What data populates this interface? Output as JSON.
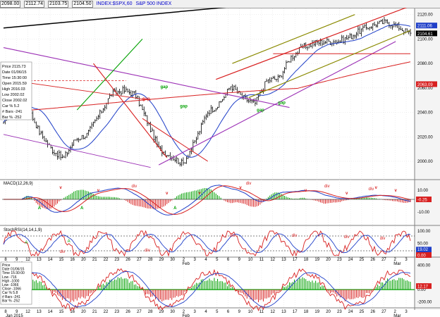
{
  "header": {
    "open": "2098.00",
    "high": "2112.74",
    "low": "2103.75",
    "close": "2104.50",
    "symbol": "INDEX:$SPX,60",
    "title": "S&P 500 INDEX"
  },
  "panels": {
    "price": {
      "y_ticks": [
        "2120.00",
        "2100.00",
        "2080.00",
        "2060.00",
        "2040.00",
        "2020.00",
        "2000.00"
      ],
      "price_tags": [
        {
          "text": "2111.06",
          "color": "#1f3fc8"
        },
        {
          "text": "2104.61",
          "color": "#000000"
        },
        {
          "text": "2063.09",
          "color": "#d82020"
        }
      ],
      "info_box": [
        "Price  2115.73",
        "Date  01/06/15",
        "Time  15:30:00",
        "Open  2015.59",
        "High  2016.03",
        "Low   2002.02",
        "Close 2002.02",
        "Car % 5.2",
        "# Bars -241",
        "Bar %  -252"
      ],
      "annotations": [
        "gap",
        "gap",
        "gap",
        "gap",
        "gap"
      ]
    },
    "macd": {
      "label": "MACD(12,26,9)",
      "y_ticks": [
        "10.00",
        "0.00",
        "-10.00"
      ],
      "value_tag": "-0.25",
      "annotations": {
        "v": [
          "v",
          "v",
          "v",
          "v",
          "v",
          "v",
          "v",
          "v",
          "v"
        ],
        "div": [
          "div",
          "div",
          "div",
          "div"
        ],
        "a": [
          "A",
          "A",
          "A"
        ]
      }
    },
    "stoch": {
      "label": "StochRSI(14,14,1,9)",
      "y_ticks": [
        "100.00",
        "50.00",
        "0.00"
      ],
      "value_tags": [
        "19.02",
        "0.00"
      ],
      "annotations": [
        "A",
        "A",
        "div",
        "div",
        "div",
        "div",
        "div",
        "div"
      ]
    },
    "bottom": {
      "y_ticks": [
        "400.00",
        "0.00",
        "-200.00"
      ],
      "value_tag": "12.17",
      "info_box": [
        "Price",
        "Date  01/06/15",
        "Time  15:30:00",
        "Low   -716",
        "High  -1000",
        "Low   -1066",
        "Close -1066",
        "Car % 5.8",
        "# Bars -241",
        "Bar %  -252"
      ]
    }
  },
  "x_axis": {
    "ticks": [
      "8",
      "9",
      "12",
      "13",
      "14",
      "15",
      "16",
      "20",
      "21",
      "22",
      "23",
      "26",
      "27",
      "28",
      "29",
      "30",
      "2",
      "3",
      "4",
      "5",
      "6",
      "9",
      "10",
      "11",
      "12",
      "13",
      "17",
      "18",
      "19",
      "20",
      "23",
      "24",
      "25",
      "26",
      "27",
      "2",
      "3"
    ],
    "month_labels": [
      "Jan 2015",
      "Feb",
      "Mar"
    ]
  },
  "chart_data": {
    "type": "line",
    "title": "S&P 500 INDEX",
    "symbol": "INDEX:$SPX,60",
    "xlabel": "",
    "ylabel": "",
    "ylim": [
      1985,
      2125
    ],
    "x": [
      "Jan 8",
      "Jan 9",
      "Jan 12",
      "Jan 13",
      "Jan 14",
      "Jan 15",
      "Jan 16",
      "Jan 20",
      "Jan 21",
      "Jan 22",
      "Jan 23",
      "Jan 26",
      "Jan 27",
      "Jan 28",
      "Jan 29",
      "Jan 30",
      "Feb 2",
      "Feb 3",
      "Feb 4",
      "Feb 5",
      "Feb 6",
      "Feb 9",
      "Feb 10",
      "Feb 11",
      "Feb 12",
      "Feb 13",
      "Feb 17",
      "Feb 18",
      "Feb 19",
      "Feb 20",
      "Feb 23",
      "Feb 24",
      "Feb 25",
      "Feb 26",
      "Feb 27"
    ],
    "series": [
      {
        "values": [
          2030,
          2054,
          2045,
          2024,
          2010,
          2002,
          2018,
          2022,
          2038,
          2055,
          2058,
          2055,
          2033,
          2010,
          2004,
          1998,
          2016,
          2040,
          2046,
          2062,
          2052,
          2047,
          2066,
          2068,
          2085,
          2093,
          2097,
          2098,
          2098,
          2102,
          2108,
          2112,
          2114,
          2110,
          2104
        ]
      }
    ],
    "last_close": 2104.61,
    "grid": true,
    "legend": "none"
  }
}
